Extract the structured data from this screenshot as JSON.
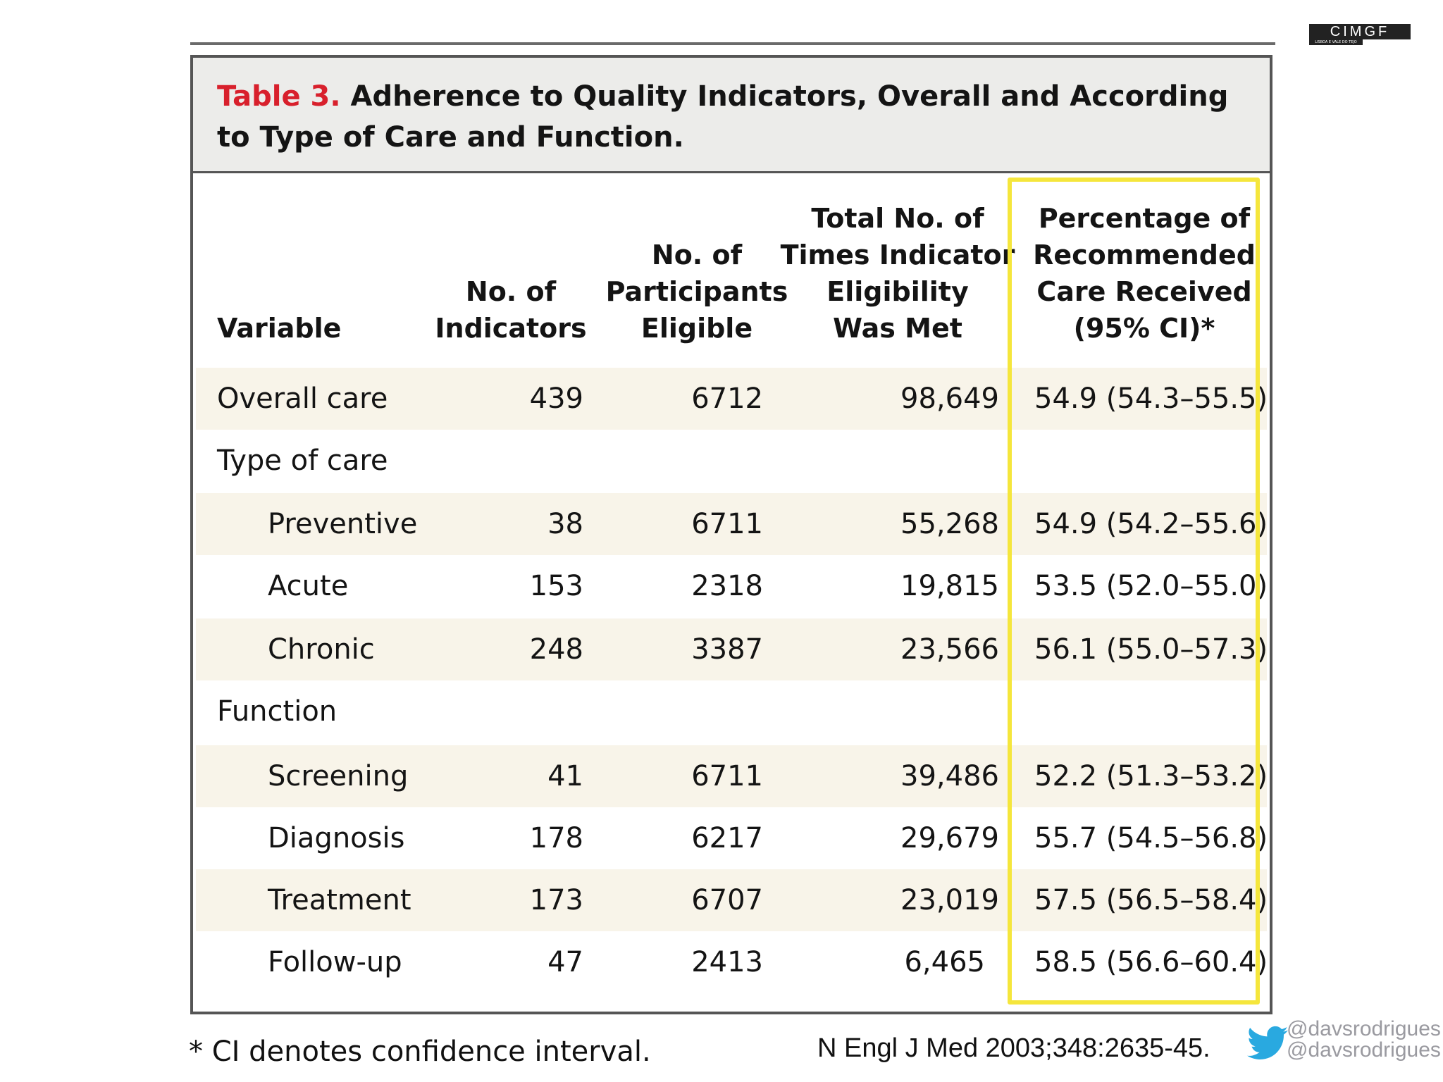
{
  "logo": {
    "text": "CIMGF",
    "subtext": "LISBOA E VALE DO TEJO"
  },
  "table": {
    "title_label": "Table 3.",
    "title_text": "Adherence to Quality Indicators, Overall and According to Type of Care and Function.",
    "headers": {
      "variable": "Variable",
      "indicators": [
        "No. of",
        "Indicators"
      ],
      "participants": [
        "No. of",
        "Participants",
        "Eligible"
      ],
      "total": [
        "Total No. of",
        "Times Indicator",
        "Eligibility",
        "Was Met"
      ],
      "percentage": [
        "Percentage of",
        "Recommended",
        "Care Received",
        "(95% CI)*"
      ]
    },
    "rows": [
      {
        "variable": "Overall care",
        "indicators": "439",
        "participants": "6712",
        "total": "98,649",
        "percentage": "54.9 (54.3–55.5)"
      },
      {
        "variable": "Type of care",
        "indicators": "",
        "participants": "",
        "total": "",
        "percentage": ""
      },
      {
        "variable": "Preventive",
        "indicators": "38",
        "participants": "6711",
        "total": "55,268",
        "percentage": "54.9 (54.2–55.6)"
      },
      {
        "variable": "Acute",
        "indicators": "153",
        "participants": "2318",
        "total": "19,815",
        "percentage": "53.5 (52.0–55.0)"
      },
      {
        "variable": "Chronic",
        "indicators": "248",
        "participants": "3387",
        "total": "23,566",
        "percentage": "56.1 (55.0–57.3)"
      },
      {
        "variable": "Function",
        "indicators": "",
        "participants": "",
        "total": "",
        "percentage": ""
      },
      {
        "variable": "Screening",
        "indicators": "41",
        "participants": "6711",
        "total": "39,486",
        "percentage": "52.2 (51.3–53.2)"
      },
      {
        "variable": "Diagnosis",
        "indicators": "178",
        "participants": "6217",
        "total": "29,679",
        "percentage": "55.7 (54.5–56.8)"
      },
      {
        "variable": "Treatment",
        "indicators": "173",
        "participants": "6707",
        "total": "23,019",
        "percentage": "57.5 (56.5–58.4)"
      },
      {
        "variable": "Follow-up",
        "indicators": "47",
        "participants": "2413",
        "total": "6,465",
        "percentage": "58.5 (56.6–60.4)"
      }
    ],
    "footnote": "* CI denotes confidence interval."
  },
  "citation": "N Engl J Med 2003;348:2635-45.",
  "social": {
    "icon": "twitter-bird-icon",
    "handle_1": "@davsrodrigues",
    "handle_2": "@davsrodrigues"
  },
  "colors": {
    "highlight": "#f5e63c",
    "title_label": "#d8202c",
    "row_shade": "#f8f4e9"
  }
}
